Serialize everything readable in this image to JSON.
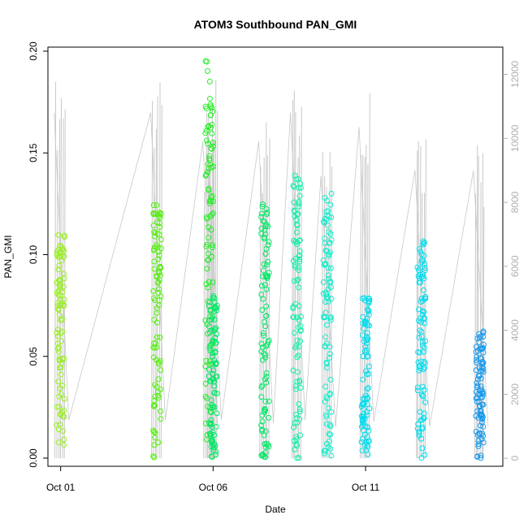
{
  "chart_data": {
    "type": "scatter",
    "title": "ATOM3 Southbound PAN_GMI",
    "xlabel": "Date",
    "ylabel": "PAN_GMI",
    "x_ticks": [
      "Oct 01",
      "Oct 06",
      "Oct 11"
    ],
    "y_ticks": [
      "0.00",
      "0.05",
      "0.10",
      "0.15",
      "0.20"
    ],
    "y2_ticks": [
      "0",
      "2000",
      "4000",
      "6000",
      "8000",
      "10000",
      "12000"
    ],
    "xlim": [
      "2016-09-30T14:00",
      "2016-10-15T12:00"
    ],
    "ylim": [
      -0.004,
      0.202
    ],
    "y2lim": [
      -250,
      12850
    ],
    "secondary_axis": "right",
    "grid": false,
    "legend": "none",
    "line_color": "#c8c8c8",
    "segments": [
      {
        "day": "2016-10-01",
        "color": "#99ee22",
        "y_min": 0.006,
        "y_max": 0.11,
        "alt_max": 12000
      },
      {
        "day": "2016-10-04",
        "color": "#55ee11",
        "y_min": 0.0,
        "y_max": 0.125,
        "alt_max": 12000
      },
      {
        "day": "2016-10-05",
        "color": "#22ee22",
        "y_min": 0.0,
        "y_max": 0.196,
        "alt_max": 11000
      },
      {
        "day": "2016-10-06",
        "color": "#00e866",
        "y_min": 0.0,
        "y_max": 0.08,
        "alt_max": 12000
      },
      {
        "day": "2016-10-07",
        "color": "#00e866",
        "y_min": 0.0,
        "y_max": 0.127,
        "alt_max": 11000
      },
      {
        "day": "2016-10-08",
        "color": "#11eeaa",
        "y_min": 0.0,
        "y_max": 0.14,
        "alt_max": 12000
      },
      {
        "day": "2016-10-09",
        "color": "#11eecc",
        "y_min": 0.0,
        "y_max": 0.13,
        "alt_max": 9800
      },
      {
        "day": "2016-10-11",
        "color": "#00ddee",
        "y_min": 0.0,
        "y_max": 0.08,
        "alt_max": 11500
      },
      {
        "day": "2016-10-12",
        "color": "#00ddee",
        "y_min": 0.0,
        "y_max": 0.107,
        "alt_max": 10000
      },
      {
        "day": "2016-10-14",
        "color": "#1499ee",
        "y_min": 0.0,
        "y_max": 0.063,
        "alt_max": 10000
      }
    ]
  }
}
